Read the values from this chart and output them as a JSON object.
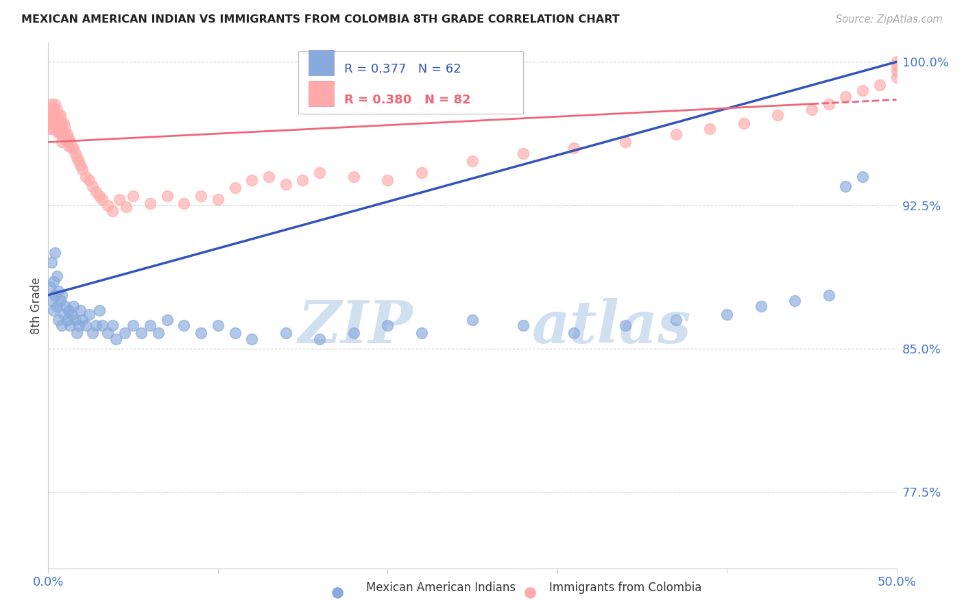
{
  "title": "MEXICAN AMERICAN INDIAN VS IMMIGRANTS FROM COLOMBIA 8TH GRADE CORRELATION CHART",
  "source": "Source: ZipAtlas.com",
  "ylabel": "8th Grade",
  "xlim": [
    0.0,
    0.5
  ],
  "ylim": [
    0.735,
    1.01
  ],
  "yticks": [
    0.775,
    0.85,
    0.925,
    1.0
  ],
  "yticklabels": [
    "77.5%",
    "85.0%",
    "92.5%",
    "100.0%"
  ],
  "blue_color": "#88AADD",
  "pink_color": "#FFAAAA",
  "blue_line_color": "#3355BB",
  "pink_line_color": "#EE6677",
  "legend_r_blue": "0.377",
  "legend_n_blue": "62",
  "legend_r_pink": "0.380",
  "legend_n_pink": "82",
  "legend_label_blue": "Mexican American Indians",
  "legend_label_pink": "Immigrants from Colombia",
  "blue_scatter_x": [
    0.001,
    0.002,
    0.002,
    0.003,
    0.003,
    0.004,
    0.004,
    0.005,
    0.005,
    0.006,
    0.006,
    0.007,
    0.008,
    0.008,
    0.009,
    0.01,
    0.011,
    0.012,
    0.013,
    0.014,
    0.015,
    0.016,
    0.017,
    0.018,
    0.019,
    0.02,
    0.022,
    0.024,
    0.026,
    0.028,
    0.03,
    0.032,
    0.035,
    0.038,
    0.04,
    0.045,
    0.05,
    0.055,
    0.06,
    0.065,
    0.07,
    0.08,
    0.09,
    0.1,
    0.11,
    0.12,
    0.14,
    0.16,
    0.18,
    0.2,
    0.22,
    0.25,
    0.28,
    0.31,
    0.34,
    0.37,
    0.4,
    0.42,
    0.44,
    0.46,
    0.47,
    0.48
  ],
  "blue_scatter_y": [
    0.882,
    0.875,
    0.895,
    0.87,
    0.885,
    0.878,
    0.9,
    0.872,
    0.888,
    0.865,
    0.88,
    0.875,
    0.862,
    0.878,
    0.868,
    0.872,
    0.865,
    0.87,
    0.862,
    0.868,
    0.872,
    0.865,
    0.858,
    0.862,
    0.87,
    0.865,
    0.862,
    0.868,
    0.858,
    0.862,
    0.87,
    0.862,
    0.858,
    0.862,
    0.855,
    0.858,
    0.862,
    0.858,
    0.862,
    0.858,
    0.865,
    0.862,
    0.858,
    0.862,
    0.858,
    0.855,
    0.858,
    0.855,
    0.858,
    0.862,
    0.858,
    0.865,
    0.862,
    0.858,
    0.862,
    0.865,
    0.868,
    0.872,
    0.875,
    0.878,
    0.935,
    0.94
  ],
  "pink_scatter_x": [
    0.001,
    0.001,
    0.001,
    0.002,
    0.002,
    0.002,
    0.003,
    0.003,
    0.003,
    0.004,
    0.004,
    0.004,
    0.005,
    0.005,
    0.005,
    0.006,
    0.006,
    0.006,
    0.007,
    0.007,
    0.007,
    0.008,
    0.008,
    0.008,
    0.009,
    0.009,
    0.01,
    0.01,
    0.011,
    0.011,
    0.012,
    0.012,
    0.013,
    0.014,
    0.015,
    0.016,
    0.017,
    0.018,
    0.019,
    0.02,
    0.022,
    0.024,
    0.026,
    0.028,
    0.03,
    0.032,
    0.035,
    0.038,
    0.042,
    0.046,
    0.05,
    0.06,
    0.07,
    0.08,
    0.09,
    0.1,
    0.11,
    0.12,
    0.13,
    0.14,
    0.15,
    0.16,
    0.18,
    0.2,
    0.22,
    0.25,
    0.28,
    0.31,
    0.34,
    0.37,
    0.39,
    0.41,
    0.43,
    0.45,
    0.46,
    0.47,
    0.48,
    0.49,
    0.5,
    0.5,
    0.5,
    0.5
  ],
  "pink_scatter_y": [
    0.975,
    0.97,
    0.965,
    0.978,
    0.972,
    0.968,
    0.975,
    0.97,
    0.965,
    0.978,
    0.972,
    0.968,
    0.975,
    0.97,
    0.965,
    0.972,
    0.968,
    0.963,
    0.972,
    0.968,
    0.963,
    0.968,
    0.963,
    0.958,
    0.968,
    0.963,
    0.965,
    0.96,
    0.962,
    0.958,
    0.96,
    0.956,
    0.958,
    0.955,
    0.955,
    0.952,
    0.95,
    0.948,
    0.946,
    0.944,
    0.94,
    0.938,
    0.935,
    0.932,
    0.93,
    0.928,
    0.925,
    0.922,
    0.928,
    0.924,
    0.93,
    0.926,
    0.93,
    0.926,
    0.93,
    0.928,
    0.934,
    0.938,
    0.94,
    0.936,
    0.938,
    0.942,
    0.94,
    0.938,
    0.942,
    0.948,
    0.952,
    0.955,
    0.958,
    0.962,
    0.965,
    0.968,
    0.972,
    0.975,
    0.978,
    0.982,
    0.985,
    0.988,
    0.992,
    0.995,
    0.998,
    1.0
  ],
  "watermark_zip": "ZIP",
  "watermark_atlas": "atlas",
  "background_color": "#FFFFFF",
  "grid_color": "#CCCCCC",
  "tick_color": "#4477CC",
  "spine_color": "#CCCCCC"
}
